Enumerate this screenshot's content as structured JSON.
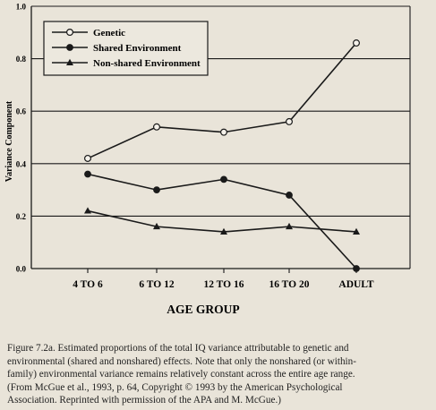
{
  "chart_data": {
    "type": "line",
    "categories": [
      "4 TO 6",
      "6 TO 12",
      "12 TO 16",
      "16 TO 20",
      "ADULT"
    ],
    "xlabel": "AGE GROUP",
    "ylabel": "Variance Component",
    "ylim": [
      0.0,
      1.0
    ],
    "yticks": [
      "0.0",
      "0.2",
      "0.4",
      "0.6",
      "0.8",
      "1.0"
    ],
    "grid": true,
    "legend_position": "top-left",
    "series": [
      {
        "name": "Genetic",
        "marker": "circle-open",
        "values": [
          0.42,
          0.54,
          0.52,
          0.56,
          0.86
        ]
      },
      {
        "name": "Shared Environment",
        "marker": "circle-filled",
        "values": [
          0.36,
          0.3,
          0.34,
          0.28,
          0.0
        ]
      },
      {
        "name": "Non-shared Environment",
        "marker": "triangle-filled",
        "values": [
          0.22,
          0.16,
          0.14,
          0.16,
          0.14
        ]
      }
    ]
  },
  "caption": {
    "lines": [
      "Figure 7.2a. Estimated proportions of the total IQ variance attributable to genetic and",
      "environmental (shared and nonshared) effects. Note that only the nonshared (or within-",
      "family) environmental variance remains relatively constant across the entire age range.",
      "(From McGue et al., 1993, p. 64, Copyright © 1993 by the American Psychological",
      "Association. Reprinted with permission of the APA and M. McGue.)"
    ]
  }
}
